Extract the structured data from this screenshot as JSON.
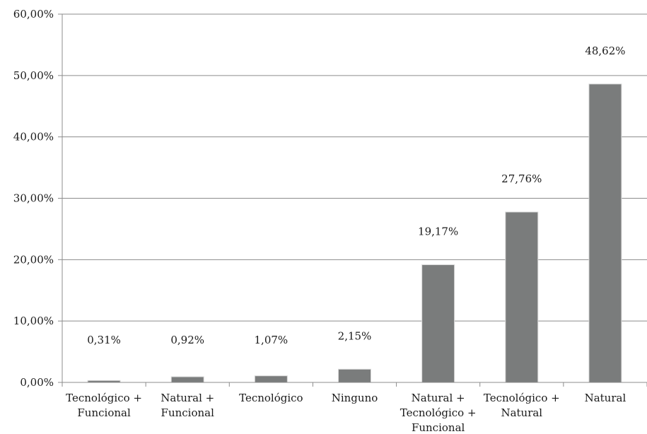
{
  "chart_data": {
    "type": "bar",
    "title": "",
    "xlabel": "",
    "ylabel": "",
    "ylim": [
      0,
      60
    ],
    "yticks": [
      0,
      10,
      20,
      30,
      40,
      50,
      60
    ],
    "ytick_labels": [
      "0,00%",
      "10,00%",
      "20,00%",
      "30,00%",
      "40,00%",
      "50,00%",
      "60,00%"
    ],
    "grid": true,
    "categories": [
      [
        "Tecnológico +",
        "Funcional"
      ],
      [
        "Natural +",
        "Funcional"
      ],
      [
        "Tecnológico"
      ],
      [
        "Ninguno"
      ],
      [
        "Natural +",
        "Tecnológico +",
        "Funcional"
      ],
      [
        "Tecnológico +",
        "Natural"
      ],
      [
        "Natural"
      ]
    ],
    "values": [
      0.31,
      0.92,
      1.07,
      2.15,
      19.17,
      27.76,
      48.62
    ],
    "value_labels": [
      "0,31%",
      "0,92%",
      "1,07%",
      "2,15%",
      "19,17%",
      "27,76%",
      "48,62%"
    ],
    "bar_color": "#7a7c7c",
    "grid_color": "#8c8c8c",
    "axis_color": "#8c8c8c"
  }
}
